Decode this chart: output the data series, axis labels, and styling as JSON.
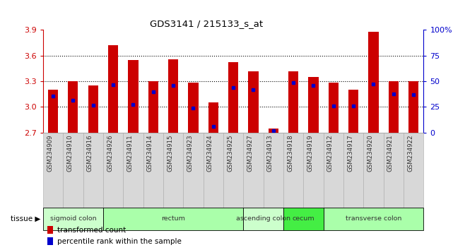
{
  "title": "GDS3141 / 215133_s_at",
  "samples": [
    "GSM234909",
    "GSM234910",
    "GSM234916",
    "GSM234926",
    "GSM234911",
    "GSM234914",
    "GSM234915",
    "GSM234923",
    "GSM234924",
    "GSM234925",
    "GSM234927",
    "GSM234913",
    "GSM234918",
    "GSM234919",
    "GSM234912",
    "GSM234917",
    "GSM234920",
    "GSM234921",
    "GSM234922"
  ],
  "bar_values": [
    3.2,
    3.3,
    3.25,
    3.72,
    3.55,
    3.3,
    3.56,
    3.28,
    3.05,
    3.52,
    3.42,
    2.75,
    3.42,
    3.35,
    3.28,
    3.2,
    3.88,
    3.3,
    3.3
  ],
  "percentile_values": [
    3.13,
    3.08,
    3.02,
    3.26,
    3.03,
    3.18,
    3.25,
    2.99,
    2.77,
    3.23,
    3.2,
    2.72,
    3.28,
    3.25,
    3.01,
    3.01,
    3.27,
    3.15,
    3.14
  ],
  "ymin": 2.7,
  "ymax": 3.9,
  "yticks_left": [
    2.7,
    3.0,
    3.3,
    3.6,
    3.9
  ],
  "yticks_right": [
    0,
    25,
    50,
    75,
    100
  ],
  "bar_color": "#cc0000",
  "percentile_color": "#0000cc",
  "bar_bottom": 2.7,
  "tissue_groups": [
    {
      "label": "sigmoid colon",
      "start": 0,
      "end": 3,
      "color": "#ccffcc"
    },
    {
      "label": "rectum",
      "start": 3,
      "end": 10,
      "color": "#aaffaa"
    },
    {
      "label": "ascending colon",
      "start": 10,
      "end": 12,
      "color": "#ccffcc"
    },
    {
      "label": "cecum",
      "start": 12,
      "end": 14,
      "color": "#44ee44"
    },
    {
      "label": "transverse colon",
      "start": 14,
      "end": 19,
      "color": "#aaffaa"
    }
  ],
  "left_axis_color": "#cc0000",
  "right_axis_color": "#0000cc",
  "grid_color": "#000000",
  "xtick_bg_color": "#d8d8d8",
  "xtick_border_color": "#aaaaaa"
}
